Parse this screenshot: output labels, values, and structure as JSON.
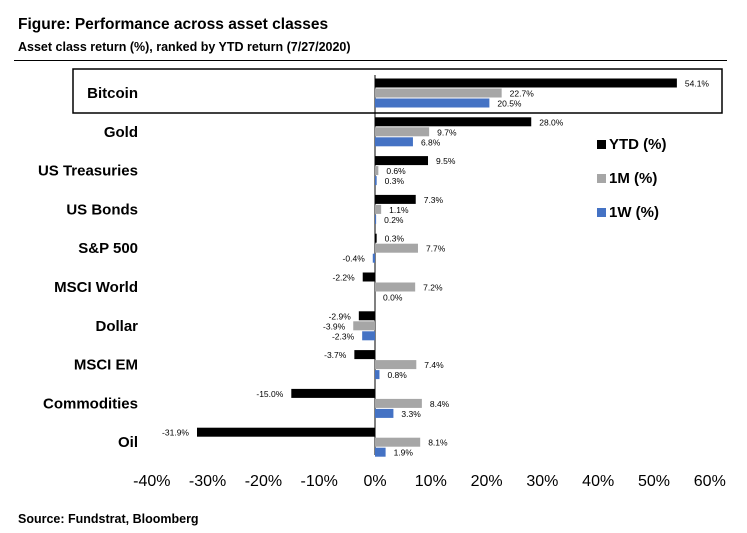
{
  "title": "Figure: Performance across asset classes",
  "subtitle": "Asset class return (%), ranked by YTD return (7/27/2020)",
  "source": "Source: Fundstrat, Bloomberg",
  "colors": {
    "ytd": "#000000",
    "m1": "#a6a6a6",
    "w1": "#4472c4",
    "highlight_border": "#000000"
  },
  "chart_data": {
    "type": "bar",
    "orientation": "horizontal",
    "highlighted_category": "Bitcoin",
    "categories": [
      "Bitcoin",
      "Gold",
      "US Treasuries",
      "US Bonds",
      "S&P 500",
      "MSCI World",
      "Dollar",
      "MSCI EM",
      "Commodities",
      "Oil"
    ],
    "series": [
      {
        "name": "YTD (%)",
        "values": [
          54.1,
          28.0,
          9.5,
          7.3,
          0.3,
          -2.2,
          -2.9,
          -3.7,
          -15.0,
          -31.9
        ],
        "labels": [
          "54.1%",
          "28.0%",
          "9.5%",
          "7.3%",
          "0.3%",
          "-2.2%",
          "-2.9%",
          "-3.7%",
          "-15.0%",
          "-31.9%"
        ]
      },
      {
        "name": "1M (%)",
        "values": [
          22.7,
          9.7,
          0.6,
          1.1,
          7.7,
          7.2,
          -3.9,
          7.4,
          8.4,
          8.1
        ],
        "labels": [
          "22.7%",
          "9.7%",
          "0.6%",
          "1.1%",
          "7.7%",
          "7.2%",
          "-3.9%",
          "7.4%",
          "8.4%",
          "8.1%"
        ]
      },
      {
        "name": "1W (%)",
        "values": [
          20.5,
          6.8,
          0.3,
          0.2,
          -0.4,
          0.0,
          -2.3,
          0.8,
          3.3,
          1.9
        ],
        "labels": [
          "20.5%",
          "6.8%",
          "0.3%",
          "0.2%",
          "-0.4%",
          "0.0%",
          "-2.3%",
          "0.8%",
          "3.3%",
          "1.9%"
        ]
      }
    ],
    "xlim": [
      -40,
      60
    ],
    "xticks": [
      -40,
      -30,
      -20,
      -10,
      0,
      10,
      20,
      30,
      40,
      50,
      60
    ],
    "xtick_labels": [
      "-40%",
      "-30%",
      "-20%",
      "-10%",
      "0%",
      "10%",
      "20%",
      "30%",
      "40%",
      "50%",
      "60%"
    ],
    "legend": {
      "placement": "right",
      "entries": [
        "YTD (%)",
        "1M (%)",
        "1W (%)"
      ]
    },
    "grid": false
  }
}
